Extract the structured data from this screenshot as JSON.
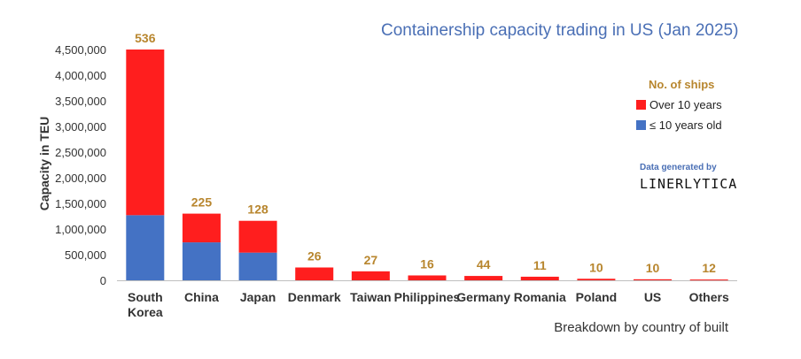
{
  "chart_data": {
    "type": "bar",
    "stacked": true,
    "title": "Containership capacity trading in US (Jan 2025)",
    "xlabel": "Breakdown by country of built",
    "ylabel": "Capacity in TEU",
    "ylim": [
      0,
      4500000
    ],
    "y_ticks": [
      "0",
      "500,000",
      "1,000,000",
      "1,500,000",
      "2,000,000",
      "2,500,000",
      "3,000,000",
      "3,500,000",
      "4,000,000",
      "4,500,000"
    ],
    "categories": [
      [
        "South",
        "Korea"
      ],
      [
        "China"
      ],
      [
        "Japan"
      ],
      [
        "Denmark"
      ],
      [
        "Taiwan"
      ],
      [
        "Philippines"
      ],
      [
        "Germany"
      ],
      [
        "Romania"
      ],
      [
        "Poland"
      ],
      [
        "US"
      ],
      [
        "Others"
      ]
    ],
    "series": [
      {
        "name": "≤ 10 years old",
        "color": "#4472c4",
        "values": [
          1270000,
          740000,
          540000,
          0,
          0,
          0,
          0,
          0,
          0,
          0,
          0
        ]
      },
      {
        "name": "Over 10 years",
        "color": "#ff1e1e",
        "values": [
          3230000,
          560000,
          620000,
          250000,
          175000,
          95000,
          85000,
          70000,
          30000,
          20000,
          15000
        ]
      }
    ],
    "data_labels": [
      "536",
      "225",
      "128",
      "26",
      "27",
      "16",
      "44",
      "11",
      "10",
      "10",
      "12"
    ],
    "legend": {
      "title": "No. of ships",
      "position": "right",
      "items": [
        {
          "label": "Over 10 years",
          "color": "#ff1e1e"
        },
        {
          "label": "≤ 10 years old",
          "color": "#4472c4"
        }
      ]
    },
    "grid": false
  },
  "credit": {
    "line1": "Data generated by",
    "brand": "LINERLYTICA"
  }
}
